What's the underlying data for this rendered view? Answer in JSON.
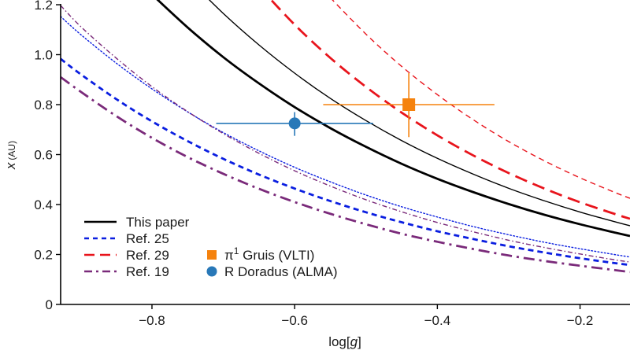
{
  "chart_data": {
    "type": "line",
    "title": "",
    "xlabel_main": "log[",
    "xlabel_italic": "g",
    "xlabel_end": "]",
    "ylabel_main": "x",
    "ylabel_unit": "(AU)",
    "xlim": [
      -0.928,
      -0.13
    ],
    "ylim": [
      0,
      1.2
    ],
    "grid": false,
    "legend_placement": "bottom-left",
    "x_ticks": [
      {
        "value": -0.8,
        "label": "−0.8"
      },
      {
        "value": -0.6,
        "label": "−0.6"
      },
      {
        "value": -0.4,
        "label": "−0.4"
      },
      {
        "value": -0.2,
        "label": "−0.2"
      }
    ],
    "y_ticks": [
      {
        "value": 0,
        "label": "0"
      },
      {
        "value": 0.2,
        "label": "0.2"
      },
      {
        "value": 0.4,
        "label": "0.4"
      },
      {
        "value": 0.6,
        "label": "0.6"
      },
      {
        "value": 0.8,
        "label": "0.8"
      },
      {
        "value": 1.0,
        "label": "1.0"
      },
      {
        "value": 1.2,
        "label": "1.2"
      }
    ],
    "series": [
      {
        "name": "This paper (lower)",
        "legend": "This paper",
        "color": "#000000",
        "style": "solid",
        "weight": "thick",
        "x": [
          -0.8,
          -0.75,
          -0.7,
          -0.65,
          -0.6,
          -0.55,
          -0.5,
          -0.45,
          -0.4,
          -0.35,
          -0.3,
          -0.25,
          -0.2,
          -0.15,
          -0.13
        ],
        "y": [
          1.241,
          1.109,
          0.99,
          0.885,
          0.79,
          0.706,
          0.631,
          0.563,
          0.503,
          0.45,
          0.402,
          0.359,
          0.321,
          0.287,
          0.274
        ]
      },
      {
        "name": "This paper (upper)",
        "legend": "",
        "color": "#000000",
        "style": "solid",
        "weight": "thin",
        "x": [
          -0.75,
          -0.7,
          -0.65,
          -0.6,
          -0.55,
          -0.5,
          -0.45,
          -0.4,
          -0.35,
          -0.3,
          -0.25,
          -0.2,
          -0.15,
          -0.13
        ],
        "y": [
          1.306,
          1.165,
          1.039,
          0.926,
          0.825,
          0.736,
          0.656,
          0.585,
          0.522,
          0.465,
          0.415,
          0.37,
          0.33,
          0.315
        ]
      },
      {
        "name": "Ref. 25 (lower)",
        "legend": "Ref. 25",
        "color": "#0a1ee0",
        "style": "dashed",
        "weight": "thick",
        "x": [
          -0.928,
          -0.9,
          -0.85,
          -0.8,
          -0.75,
          -0.7,
          -0.65,
          -0.6,
          -0.55,
          -0.5,
          -0.45,
          -0.4,
          -0.35,
          -0.3,
          -0.25,
          -0.2,
          -0.15,
          -0.13
        ],
        "y": [
          0.983,
          0.922,
          0.822,
          0.733,
          0.654,
          0.583,
          0.52,
          0.464,
          0.414,
          0.369,
          0.329,
          0.293,
          0.262,
          0.233,
          0.208,
          0.185,
          0.165,
          0.158
        ]
      },
      {
        "name": "Ref. 25 (upper)",
        "legend": "",
        "color": "#0a1ee0",
        "style": "dotted",
        "weight": "thin",
        "x": [
          -0.928,
          -0.9,
          -0.85,
          -0.8,
          -0.75,
          -0.7,
          -0.65,
          -0.6,
          -0.55,
          -0.5,
          -0.45,
          -0.4,
          -0.35,
          -0.3,
          -0.25,
          -0.2,
          -0.15,
          -0.13
        ],
        "y": [
          1.153,
          1.081,
          0.966,
          0.863,
          0.771,
          0.688,
          0.615,
          0.549,
          0.491,
          0.438,
          0.391,
          0.35,
          0.312,
          0.279,
          0.249,
          0.223,
          0.199,
          0.19
        ]
      },
      {
        "name": "Ref. 29 (lower)",
        "legend": "Ref. 29",
        "color": "#e8141c",
        "style": "longdash",
        "weight": "thick",
        "x": [
          -0.65,
          -0.6,
          -0.55,
          -0.5,
          -0.45,
          -0.4,
          -0.35,
          -0.3,
          -0.25,
          -0.2,
          -0.15,
          -0.13
        ],
        "y": [
          1.272,
          1.12,
          0.987,
          0.871,
          0.768,
          0.677,
          0.597,
          0.526,
          0.464,
          0.409,
          0.361,
          0.343
        ]
      },
      {
        "name": "Ref. 29 (upper)",
        "legend": "",
        "color": "#e8141c",
        "style": "dashed",
        "weight": "thin",
        "x": [
          -0.55,
          -0.5,
          -0.45,
          -0.4,
          -0.35,
          -0.3,
          -0.25,
          -0.2,
          -0.15,
          -0.13
        ],
        "y": [
          1.228,
          1.082,
          0.953,
          0.84,
          0.74,
          0.652,
          0.575,
          0.507,
          0.447,
          0.425
        ]
      },
      {
        "name": "Ref. 19 (lower)",
        "legend": "Ref. 19",
        "color": "#7a2a7a",
        "style": "dashdot",
        "weight": "thick",
        "x": [
          -0.928,
          -0.9,
          -0.85,
          -0.8,
          -0.75,
          -0.7,
          -0.65,
          -0.6,
          -0.55,
          -0.5,
          -0.45,
          -0.4,
          -0.35,
          -0.3,
          -0.25,
          -0.2,
          -0.15,
          -0.13
        ],
        "y": [
          0.91,
          0.852,
          0.754,
          0.667,
          0.59,
          0.523,
          0.463,
          0.41,
          0.363,
          0.321,
          0.283,
          0.251,
          0.222,
          0.196,
          0.174,
          0.155,
          0.137,
          0.13
        ]
      },
      {
        "name": "Ref. 19 (upper)",
        "legend": "",
        "color": "#7a2a7a",
        "style": "dashdot-fine",
        "weight": "thin",
        "x": [
          -0.928,
          -0.9,
          -0.85,
          -0.8,
          -0.75,
          -0.7,
          -0.65,
          -0.6,
          -0.55,
          -0.5,
          -0.45,
          -0.4,
          -0.35,
          -0.3,
          -0.25,
          -0.2,
          -0.15,
          -0.13
        ],
        "y": [
          1.197,
          1.113,
          0.986,
          0.872,
          0.772,
          0.684,
          0.605,
          0.535,
          0.474,
          0.419,
          0.371,
          0.328,
          0.291,
          0.257,
          0.228,
          0.202,
          0.178,
          0.17
        ]
      }
    ],
    "points": [
      {
        "name": "π1 Gruis (VLTI)",
        "label_main": "π",
        "label_sup": "1",
        "label_rest": " Gruis (VLTI)",
        "marker": "square",
        "color": "#f5820d",
        "x": -0.44,
        "y": 0.8,
        "x_err": [
          -0.56,
          -0.32
        ],
        "y_err": [
          0.67,
          0.926
        ]
      },
      {
        "name": "R Doradus (ALMA)",
        "label_main": "R Doradus (ALMA)",
        "marker": "circle",
        "color": "#2878b8",
        "x": -0.6,
        "y": 0.725,
        "x_err": [
          -0.71,
          -0.49
        ],
        "y_err": [
          0.675,
          0.77
        ]
      }
    ],
    "legend_lines": [
      {
        "label": "This paper",
        "color": "#000000",
        "style": "solid"
      },
      {
        "label": "Ref. 25",
        "color": "#0a1ee0",
        "style": "dashed"
      },
      {
        "label": "Ref. 29",
        "color": "#e8141c",
        "style": "longdash"
      },
      {
        "label": "Ref. 19",
        "color": "#7a2a7a",
        "style": "dashdot"
      }
    ]
  }
}
